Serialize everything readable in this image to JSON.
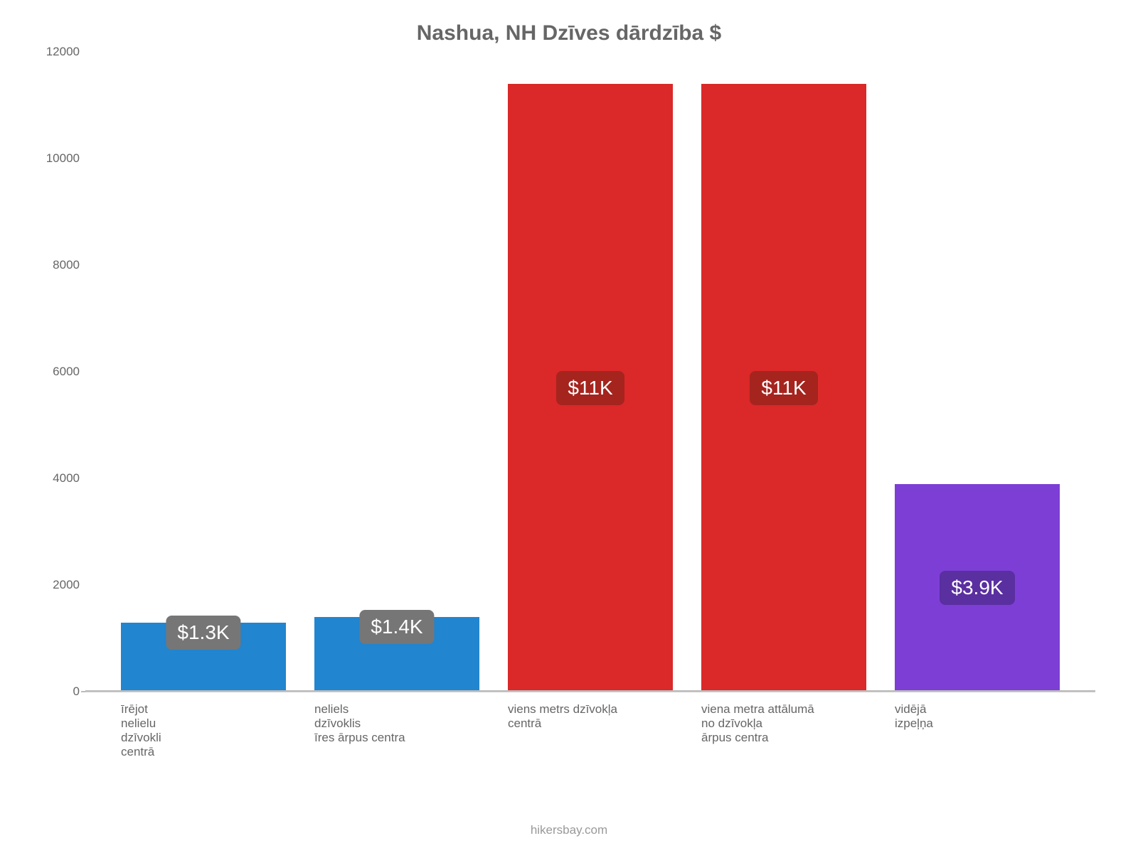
{
  "chart": {
    "type": "bar",
    "title": "Nashua, NH Dzīves dārdzība $",
    "title_color": "#666666",
    "title_fontsize": 30,
    "background_color": "#ffffff",
    "yaxis": {
      "min": 0,
      "max": 12000,
      "ticks": [
        0,
        2000,
        4000,
        6000,
        8000,
        10000,
        12000
      ],
      "tick_labels": [
        "0",
        "2000",
        "4000",
        "6000",
        "8000",
        "10000",
        "12000"
      ],
      "tick_fontsize": 17,
      "tick_color": "#666666",
      "gridline_color": "#f0f0f0"
    },
    "xaxis": {
      "label_fontsize": 17,
      "label_color": "#666666"
    },
    "bars": [
      {
        "category": "īrējot\nnelielu\ndzīvokli\ncentrā",
        "value": 1300,
        "display_label": "$1.3K",
        "fill_color": "#2185d0",
        "badge_bg": "#767676",
        "badge_text_color": "#ffffff"
      },
      {
        "category": "neliels\ndzīvoklis\nīres ārpus centra",
        "value": 1400,
        "display_label": "$1.4K",
        "fill_color": "#2185d0",
        "badge_bg": "#767676",
        "badge_text_color": "#ffffff"
      },
      {
        "category": "viens metrs dzīvokļa\ncentrā",
        "value": 11400,
        "display_label": "$11K",
        "fill_color": "#db2828",
        "badge_bg": "#a5241e",
        "badge_text_color": "#ffffff"
      },
      {
        "category": "viena metra attālumā\nno dzīvokļa\nārpus centra",
        "value": 11400,
        "display_label": "$11K",
        "fill_color": "#db2828",
        "badge_bg": "#a5241e",
        "badge_text_color": "#ffffff"
      },
      {
        "category": "vidējā\nizpeļņa",
        "value": 3900,
        "display_label": "$3.9K",
        "fill_color": "#7d3ed6",
        "badge_bg": "#5a2fa0",
        "badge_text_color": "#ffffff"
      }
    ],
    "bar_width_ratio": 0.85,
    "badge_fontsize": 28,
    "attribution": "hikersbay.com",
    "attribution_color": "#999999",
    "attribution_fontsize": 17
  }
}
